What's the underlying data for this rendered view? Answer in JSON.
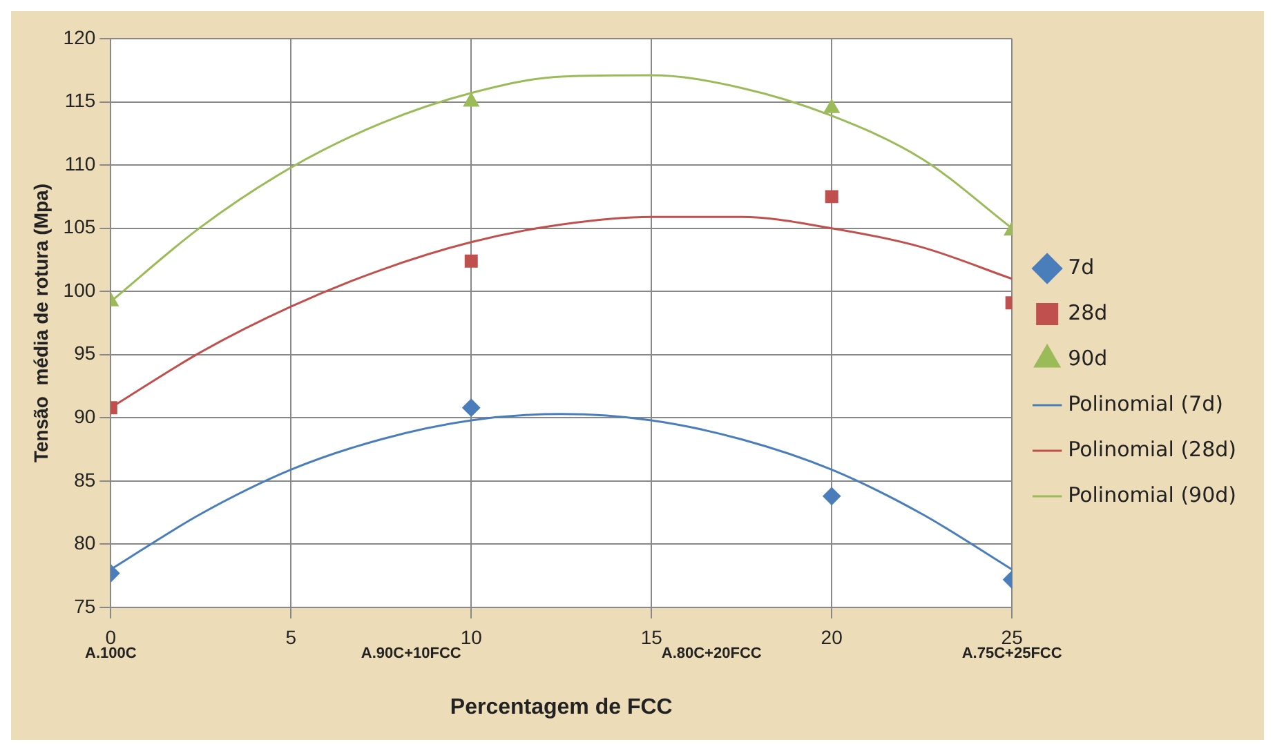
{
  "chart_data": {
    "type": "scatter",
    "xlabel": "Percentagem de FCC",
    "ylabel": "Tensão  média de rotura (Mpa)",
    "xlim": [
      0,
      25
    ],
    "xticks": [
      0,
      5,
      10,
      15,
      20,
      25
    ],
    "ylim": [
      75,
      120
    ],
    "yticks": [
      75,
      80,
      85,
      90,
      95,
      100,
      105,
      110,
      115,
      120
    ],
    "grid": true,
    "legend": "right",
    "series": [
      {
        "name": "7d",
        "color": "#4a7ebb",
        "marker": "diamond",
        "x": [
          0,
          10,
          20,
          25
        ],
        "values": [
          77.7,
          90.8,
          83.8,
          77.2
        ]
      },
      {
        "name": "28d",
        "color": "#c0504d",
        "marker": "square",
        "x": [
          0,
          10,
          20,
          25
        ],
        "values": [
          90.8,
          102.4,
          107.5,
          99.1
        ]
      },
      {
        "name": "90d",
        "color": "#9bbb59",
        "marker": "triangle",
        "x": [
          0,
          10,
          20,
          25
        ],
        "values": [
          99.2,
          115,
          114.5,
          104.8
        ]
      },
      {
        "name": "Polinomial (7d)",
        "type": "line",
        "color": "#4a7ebb",
        "marker": "none",
        "x": [
          0,
          2.5,
          5,
          7.5,
          10,
          12.5,
          15,
          17.5,
          20,
          22.5,
          25
        ],
        "values": [
          78,
          82.4,
          85.9,
          88.3,
          89.8,
          90.3,
          89.8,
          88.3,
          85.9,
          82.4,
          78
        ]
      },
      {
        "name": "Polinomial (28d)",
        "type": "line",
        "color": "#c0504d",
        "marker": "none",
        "x": [
          0,
          2.5,
          5,
          7.5,
          10,
          12.5,
          15,
          17.5,
          20,
          22.5,
          25
        ],
        "values": [
          90.8,
          95.2,
          98.8,
          101.7,
          103.9,
          105.3,
          105.9,
          105.9,
          105,
          103.5,
          101
        ]
      },
      {
        "name": "Polinomial (90d)",
        "type": "line",
        "color": "#9bbb59",
        "marker": "none",
        "x": [
          0,
          2.5,
          5,
          7.5,
          10,
          12.5,
          15,
          17.5,
          20,
          22.5,
          25
        ],
        "values": [
          99.2,
          105.1,
          109.8,
          113.3,
          115.7,
          117,
          117.1,
          116.1,
          113.9,
          110.5,
          105
        ]
      }
    ],
    "annotations": [
      "A.100C",
      "A.90C+10FCC",
      "A.80C+20FCC",
      "A.75C+25FCC"
    ]
  }
}
